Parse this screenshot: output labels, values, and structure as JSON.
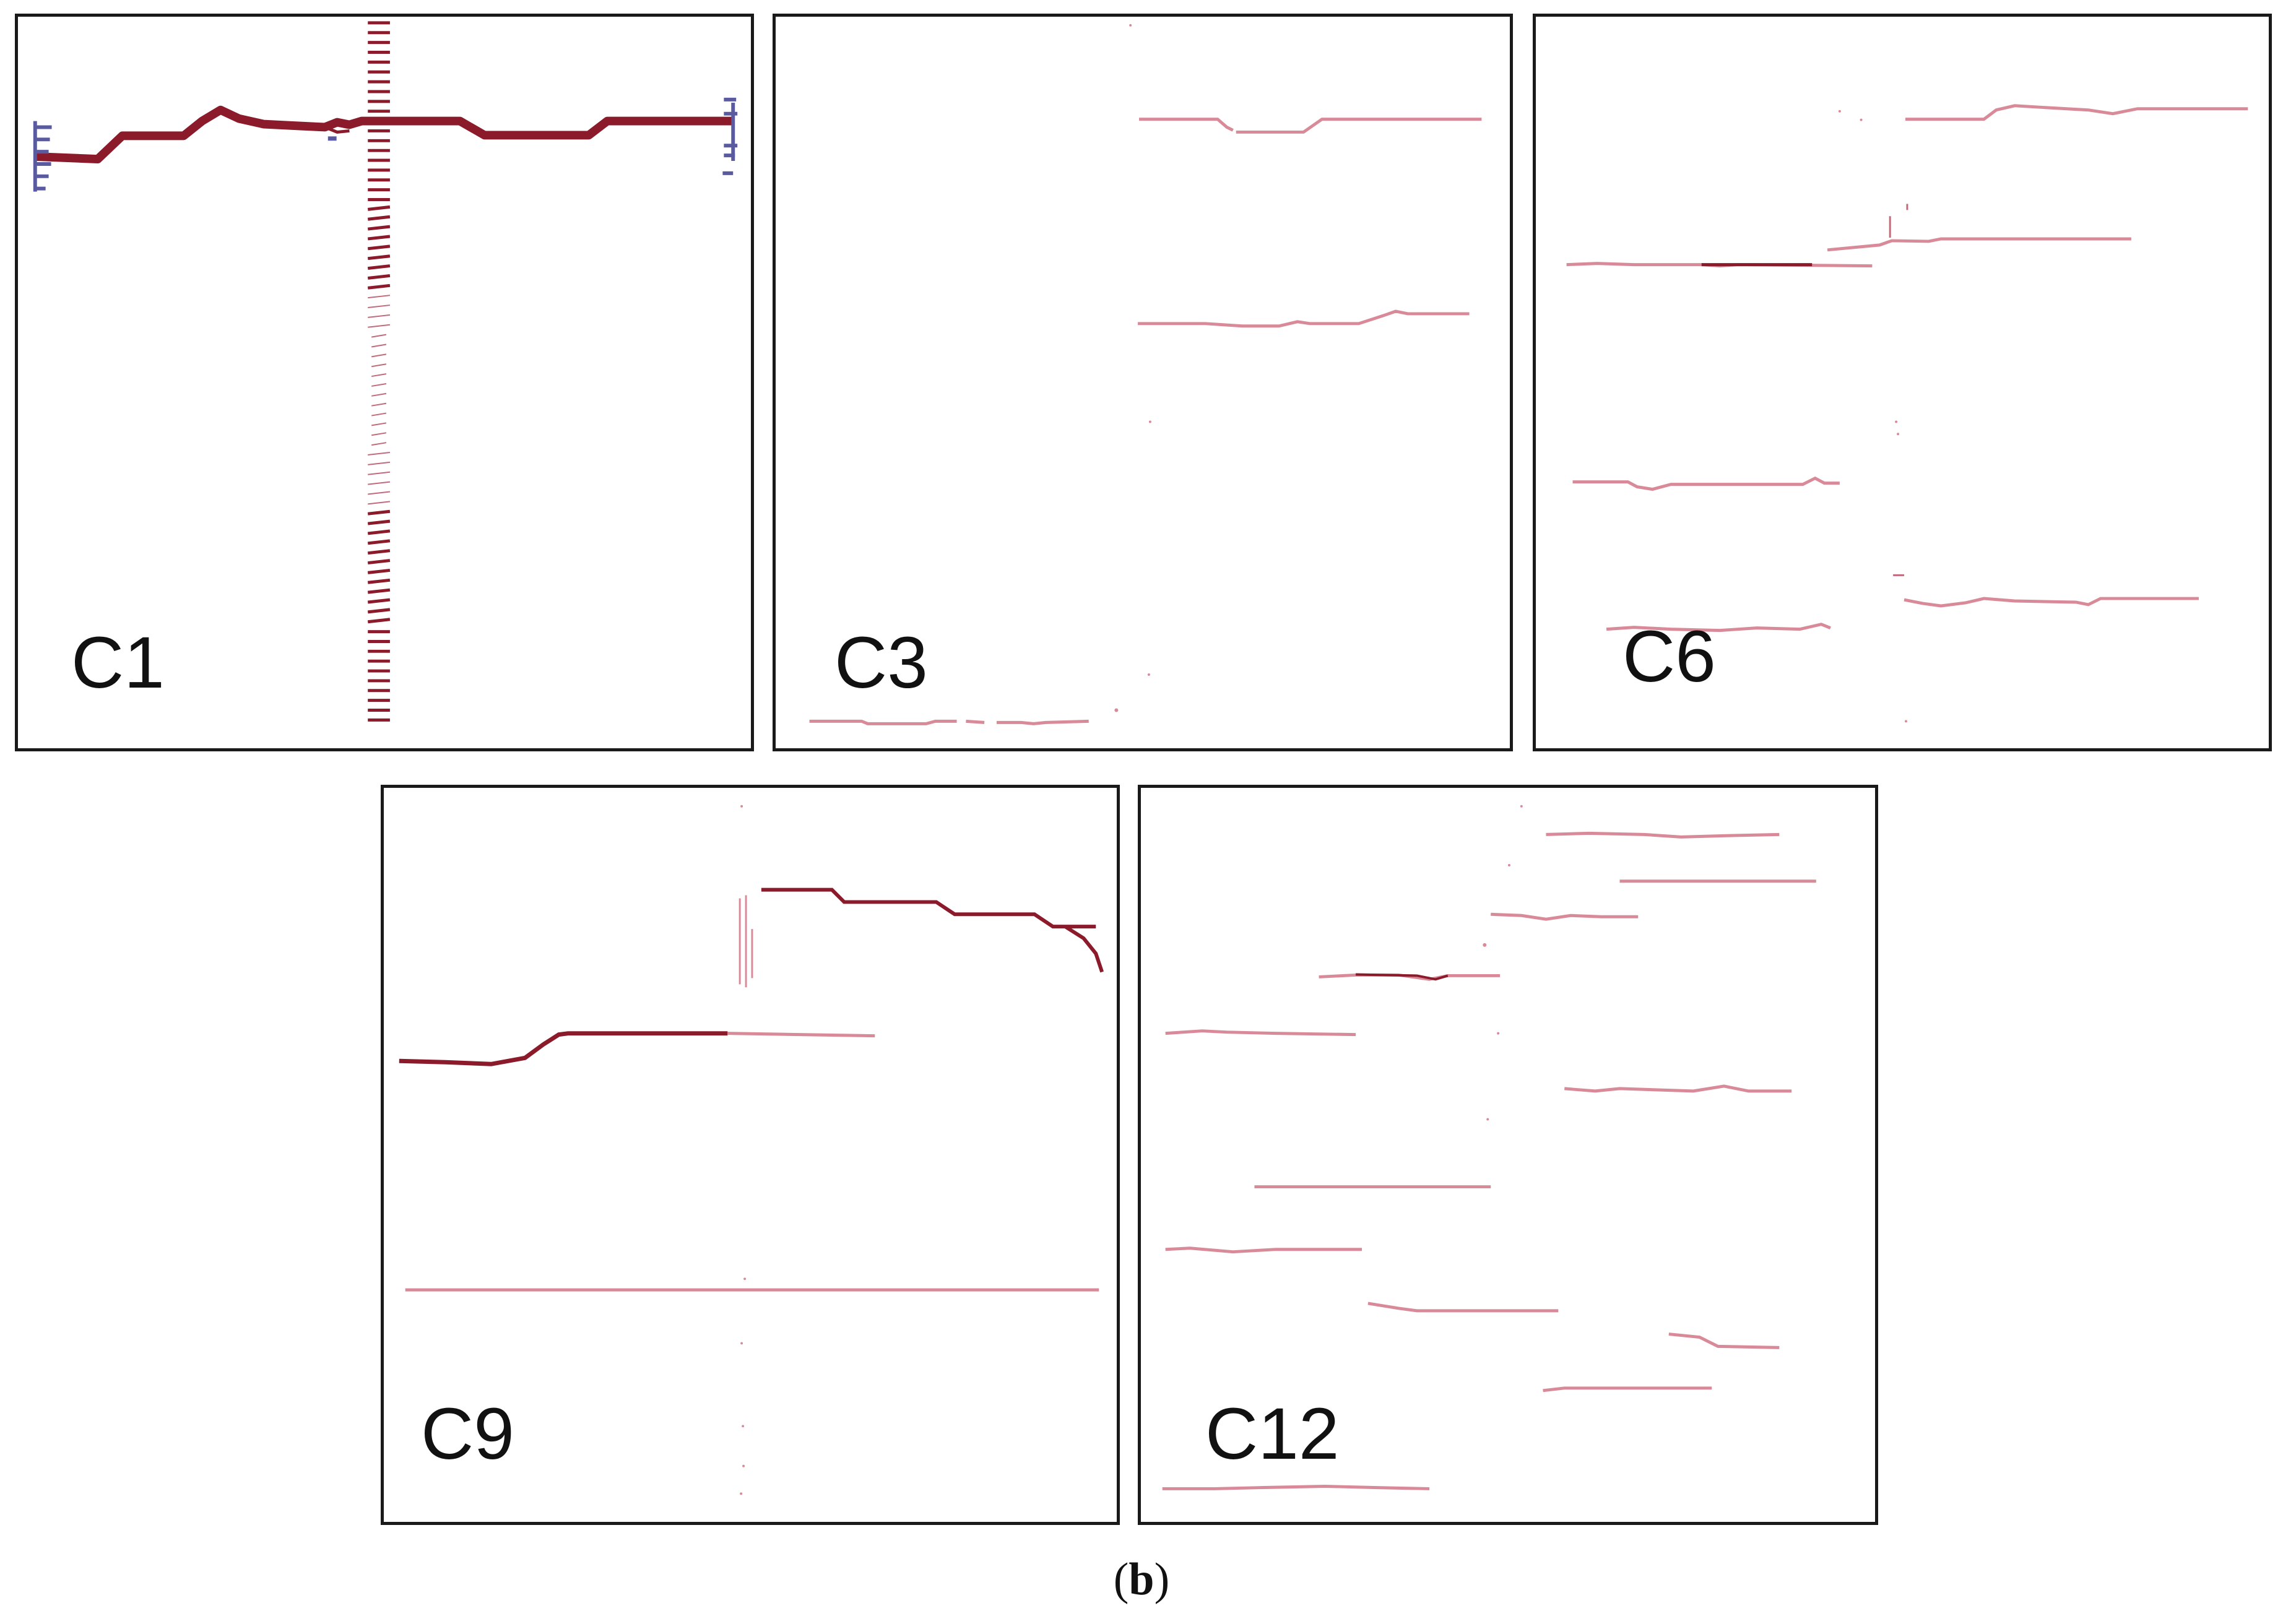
{
  "caption": {
    "open": "(",
    "letter": "b",
    "close": ")"
  },
  "colors": {
    "dark_trace": "#8b1a2b",
    "light_trace": "#d98a99",
    "blue_trace": "#5a5aa0",
    "border": "#1a1a1a"
  },
  "panels": [
    {
      "label": "C1"
    },
    {
      "label": "C3"
    },
    {
      "label": "C6"
    },
    {
      "label": "C9"
    },
    {
      "label": "C12"
    }
  ]
}
